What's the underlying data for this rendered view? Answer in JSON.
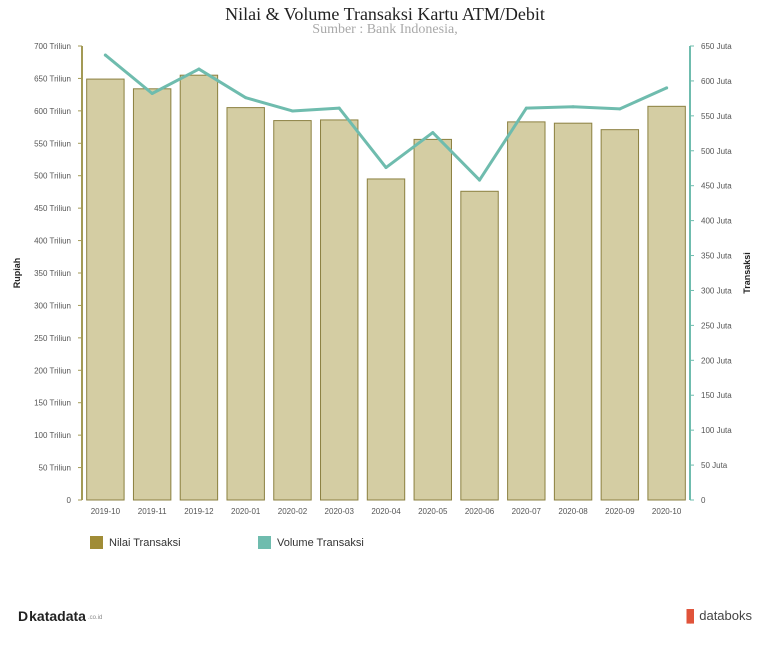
{
  "header": {
    "title": "Nilai & Volume Transaksi Kartu ATM/Debit",
    "subtitle": "Sumber : Bank Indonesia,"
  },
  "legend": {
    "nilai": "Nilai Transaksi",
    "volume": "Volume Transaksi"
  },
  "footer": {
    "brand_left": "katadata",
    "brand_left_suffix": ".co.id",
    "brand_right": "databoks"
  },
  "colors": {
    "bar_fill": "#d4cda3",
    "bar_stroke": "#8b8040",
    "legend_bar": "#a08c36",
    "line": "#6fbcae",
    "left_axis": "#a39a55",
    "right_axis": "#6fbcae"
  },
  "chart_data": {
    "type": "bar+line",
    "categories": [
      "2019-10",
      "2019-11",
      "2019-12",
      "2020-01",
      "2020-02",
      "2020-03",
      "2020-04",
      "2020-05",
      "2020-06",
      "2020-07",
      "2020-08",
      "2020-09",
      "2020-10"
    ],
    "series": [
      {
        "name": "Nilai Transaksi",
        "type": "bar",
        "axis": "left",
        "unit": "Triliun",
        "values": [
          649,
          634,
          655,
          605,
          585,
          586,
          495,
          556,
          476,
          583,
          581,
          571,
          607
        ]
      },
      {
        "name": "Volume Transaksi",
        "type": "line",
        "axis": "right",
        "unit": "Juta",
        "values": [
          637,
          582,
          617,
          576,
          557,
          561,
          476,
          526,
          458,
          561,
          563,
          560,
          590
        ]
      }
    ],
    "ylabel_left": "Rupiah",
    "ylabel_right": "Transaksi",
    "ylim_left": [
      0,
      700
    ],
    "ylim_right": [
      0,
      650
    ],
    "yticks_left": [
      "0",
      "50 Triliun",
      "100 Triliun",
      "150 Triliun",
      "200 Triliun",
      "250 Triliun",
      "300 Triliun",
      "350 Triliun",
      "400 Triliun",
      "450 Triliun",
      "500 Triliun",
      "550 Triliun",
      "600 Triliun",
      "650 Triliun",
      "700 Triliun"
    ],
    "yticks_right": [
      "0",
      "50 Juta",
      "100 Juta",
      "150 Juta",
      "200 Juta",
      "250 Juta",
      "300 Juta",
      "350 Juta",
      "400 Juta",
      "450 Juta",
      "500 Juta",
      "550 Juta",
      "600 Juta",
      "650 Juta"
    ],
    "grid": false,
    "legend_position": "bottom-left"
  }
}
